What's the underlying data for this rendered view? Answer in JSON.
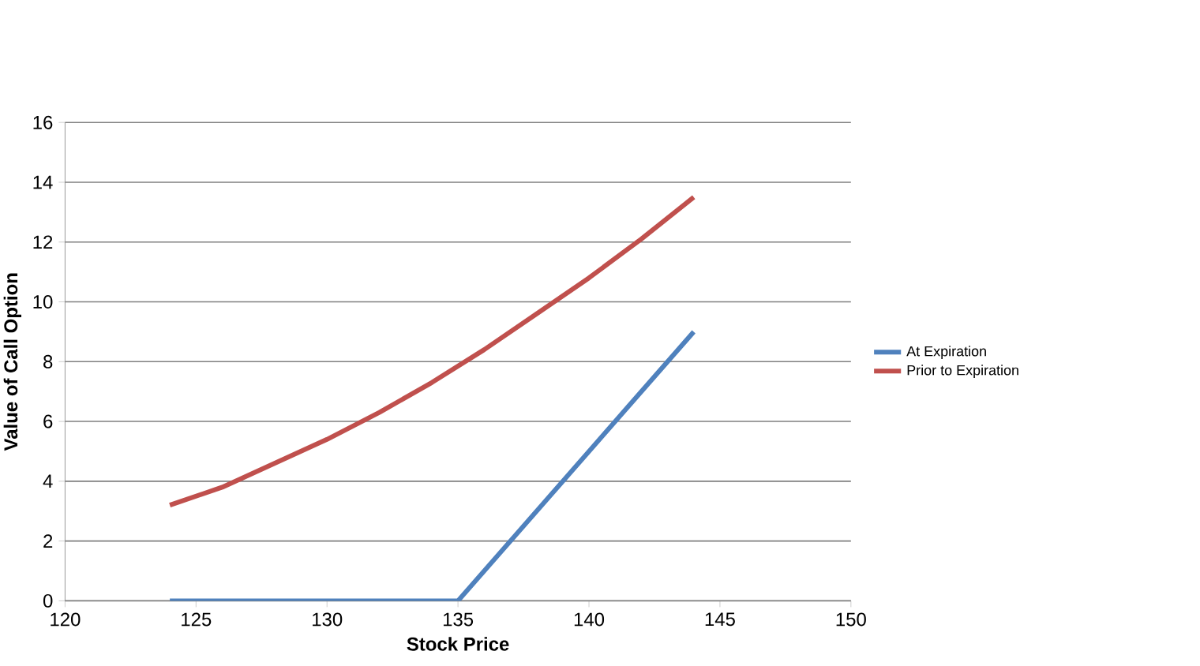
{
  "chart_data": {
    "type": "line",
    "xlabel": "Stock Price",
    "ylabel": "Value of Call Option",
    "xlim": [
      120,
      150
    ],
    "xticks": [
      120,
      125,
      130,
      135,
      140,
      145,
      150
    ],
    "ylim": [
      0,
      16
    ],
    "yticks": [
      0,
      2,
      4,
      6,
      8,
      10,
      12,
      14,
      16
    ],
    "grid": "y",
    "legend": "right",
    "marker": "none",
    "line_style": "solid",
    "series": [
      {
        "name": "At Expiration",
        "color": "#4f81bd",
        "x": [
          124,
          135,
          144
        ],
        "values": [
          0,
          0,
          9
        ]
      },
      {
        "name": "Prior to Expiration",
        "color": "#c0504d",
        "x": [
          124,
          126,
          128,
          130,
          132,
          134,
          136,
          138,
          140,
          142,
          144
        ],
        "values": [
          3.2,
          3.8,
          4.6,
          5.4,
          6.3,
          7.3,
          8.4,
          9.6,
          10.8,
          12.1,
          13.5
        ]
      }
    ]
  }
}
